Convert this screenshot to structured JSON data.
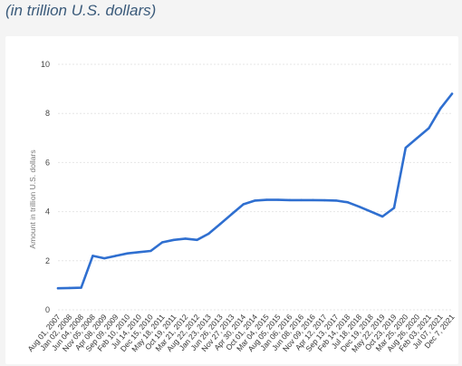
{
  "header": {
    "subtitle": "(in trillion U.S. dollars)"
  },
  "chart_data": {
    "type": "line",
    "title": "",
    "subtitle": "(in trillion U.S. dollars)",
    "xlabel": "",
    "ylabel": "Amount in trillion U.S. dollars",
    "ylim": [
      0,
      10
    ],
    "yticks": [
      0,
      2,
      4,
      6,
      8,
      10
    ],
    "grid": true,
    "line_color": "#2f6fd0",
    "categories": [
      "Aug 01, 2007",
      "Jan 02, 2008",
      "Jun 04, 2008",
      "Nov 05, 2008",
      "Apr 08, 2009",
      "Sep 09, 2009",
      "Feb 10, 2010",
      "Jul 14, 2010",
      "Dec 15, 2010",
      "May 18, 2011",
      "Oct 19, 2011",
      "Mar 21, 2012",
      "Aug 22, 2012",
      "Jan 23, 2013",
      "Jun 26, 2013",
      "Nov 27, 2013",
      "Apr 30, 2014",
      "Oct 01, 2014",
      "Mar 04, 2015",
      "Aug 05, 2015",
      "Jan 06, 2016",
      "Jun 08, 2016",
      "Nov 09, 2016",
      "Apr 12, 2017",
      "Sep 13, 2017",
      "Feb 14, 2018",
      "Jul 18, 2018",
      "Dec 19, 2018",
      "May 22, 2019",
      "Oct 23, 2019",
      "Mar 25, 2020",
      "Aug 26, 2020",
      "Feb 03, 2021",
      "Jul 07, 2021",
      "Dec 7, 2021"
    ],
    "series": [
      {
        "values": [
          0.88,
          0.89,
          0.9,
          2.2,
          2.1,
          2.2,
          2.3,
          2.35,
          2.4,
          2.75,
          2.85,
          2.9,
          2.85,
          3.1,
          3.5,
          3.9,
          4.3,
          4.45,
          4.48,
          4.48,
          4.47,
          4.47,
          4.47,
          4.46,
          4.45,
          4.38,
          4.2,
          4.0,
          3.8,
          4.15,
          6.6,
          7.0,
          7.4,
          8.2,
          8.8
        ]
      }
    ]
  }
}
